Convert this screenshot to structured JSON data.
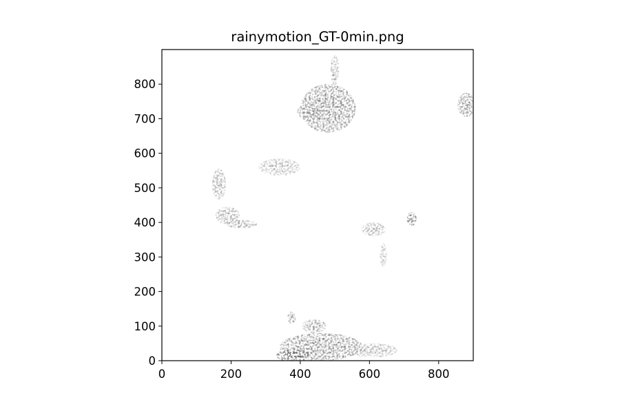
{
  "chart_data": {
    "type": "heatmap",
    "title": "rainymotion_GT-0min.png",
    "xlabel": "",
    "ylabel": "",
    "xlim": [
      0,
      900
    ],
    "ylim": [
      0,
      900
    ],
    "x_ticks": [
      0,
      200,
      400,
      600,
      800
    ],
    "y_ticks": [
      0,
      100,
      200,
      300,
      400,
      500,
      600,
      700,
      800
    ],
    "colormap": "gray_r",
    "grid": false,
    "legend": "none",
    "colors": {
      "background": "#ffffff",
      "axes": "#000000",
      "echo_light": "#b5b5b5",
      "echo_dark": "#3a3a3a"
    },
    "echo_regions": [
      {
        "label": "north-central cluster",
        "cx": 480,
        "cy": 730,
        "rx": 80,
        "ry": 70,
        "intensity": 0.75
      },
      {
        "label": "north-central tail",
        "cx": 430,
        "cy": 720,
        "rx": 40,
        "ry": 25,
        "intensity": 0.4
      },
      {
        "label": "north streak",
        "cx": 500,
        "cy": 840,
        "rx": 12,
        "ry": 45,
        "intensity": 0.45
      },
      {
        "label": "west arc upper",
        "cx": 165,
        "cy": 510,
        "rx": 20,
        "ry": 45,
        "intensity": 0.45
      },
      {
        "label": "west arc lower",
        "cx": 190,
        "cy": 420,
        "rx": 35,
        "ry": 25,
        "intensity": 0.5
      },
      {
        "label": "west arc bottom",
        "cx": 230,
        "cy": 395,
        "rx": 45,
        "ry": 12,
        "intensity": 0.5
      },
      {
        "label": "west small cells",
        "cx": 340,
        "cy": 560,
        "rx": 60,
        "ry": 25,
        "intensity": 0.35
      },
      {
        "label": "northeast edge",
        "cx": 880,
        "cy": 740,
        "rx": 25,
        "ry": 35,
        "intensity": 0.7
      },
      {
        "label": "east cell",
        "cx": 722,
        "cy": 410,
        "rx": 14,
        "ry": 20,
        "intensity": 0.9
      },
      {
        "label": "central-east cluster",
        "cx": 612,
        "cy": 380,
        "rx": 35,
        "ry": 20,
        "intensity": 0.45
      },
      {
        "label": "central-east streak",
        "cx": 640,
        "cy": 305,
        "rx": 10,
        "ry": 35,
        "intensity": 0.35
      },
      {
        "label": "south-central band",
        "cx": 460,
        "cy": 40,
        "rx": 120,
        "ry": 40,
        "intensity": 0.7
      },
      {
        "label": "south-central core",
        "cx": 380,
        "cy": 15,
        "rx": 50,
        "ry": 18,
        "intensity": 0.85
      },
      {
        "label": "south-east band",
        "cx": 610,
        "cy": 30,
        "rx": 70,
        "ry": 20,
        "intensity": 0.4
      },
      {
        "label": "south small cell",
        "cx": 375,
        "cy": 125,
        "rx": 12,
        "ry": 18,
        "intensity": 0.65
      },
      {
        "label": "south upper cells",
        "cx": 440,
        "cy": 100,
        "rx": 35,
        "ry": 20,
        "intensity": 0.55
      }
    ]
  }
}
